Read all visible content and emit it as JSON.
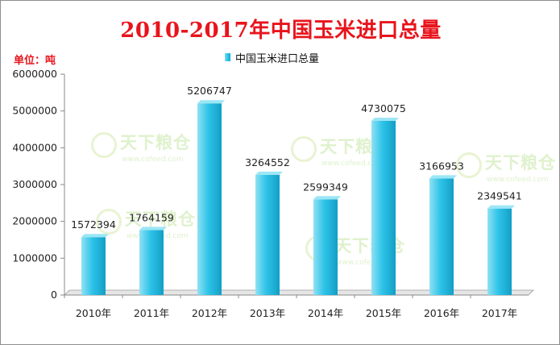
{
  "unit_label": "单位：吨",
  "watermark": {
    "cn": "天下粮仓",
    "en": "www.cofeed.com"
  },
  "colors": {
    "bar_light": "#8fe1f3",
    "bar_mid": "#2ec3e8",
    "bar_dark": "#139fc6",
    "title": "#e8141c"
  },
  "chart_data": {
    "type": "bar",
    "title": "2010-2017年中国玉米进口总量",
    "xlabel": "",
    "ylabel": "",
    "categories": [
      "2010年",
      "2011年",
      "2012年",
      "2013年",
      "2014年",
      "2015年",
      "2016年",
      "2017年"
    ],
    "series": [
      {
        "name": "中国玉米进口总量",
        "values": [
          1572394,
          1764159,
          5206747,
          3264552,
          2599349,
          4730075,
          3166953,
          2349541
        ]
      }
    ],
    "data_labels": [
      "1572394",
      "1764159",
      "5206747",
      "3264552",
      "2599349",
      "4730075",
      "3166953",
      "2349541"
    ],
    "ylim": [
      0,
      6000000
    ],
    "yticks": [
      0,
      1000000,
      2000000,
      3000000,
      4000000,
      5000000,
      6000000
    ],
    "ytick_labels": [
      "0",
      "1000000",
      "2000000",
      "3000000",
      "4000000",
      "5000000",
      "6000000"
    ],
    "grid": false,
    "legend_position": "top-center"
  }
}
